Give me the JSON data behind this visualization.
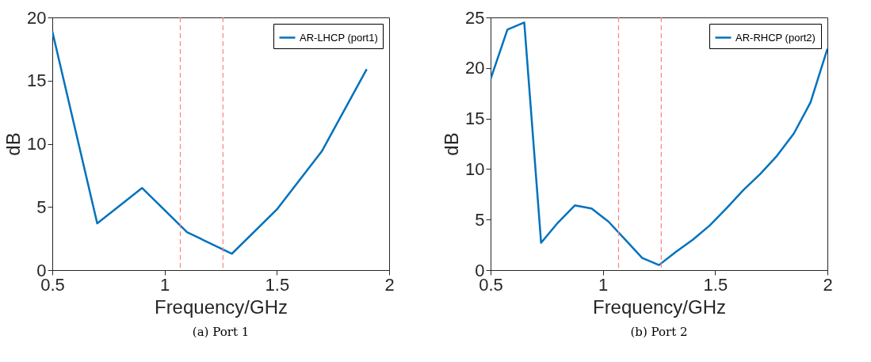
{
  "chart_data": [
    {
      "type": "line",
      "title": "(a) Port 1",
      "xlabel": "Frequency/GHz",
      "ylabel": "dB",
      "x": [
        0.5,
        0.7,
        0.9,
        1.1,
        1.3,
        1.5,
        1.7,
        1.9
      ],
      "series": [
        {
          "name": "AR-LHCP (port1)",
          "color": "#0072bd",
          "values": [
            18.9,
            3.7,
            6.5,
            3.0,
            1.3,
            4.8,
            9.4,
            15.9
          ]
        }
      ],
      "xlim": [
        0.5,
        2
      ],
      "xticks": [
        0.5,
        1,
        1.5,
        2
      ],
      "ylim": [
        0,
        20
      ],
      "yticks": [
        0,
        5,
        10,
        15,
        20
      ],
      "ref_lines": [
        {
          "axis": "x",
          "value": 1.07,
          "color": "#ff8080",
          "line_style": "dashed"
        },
        {
          "axis": "x",
          "value": 1.26,
          "color": "#ff8080",
          "line_style": "dashed"
        }
      ],
      "legend": "top right",
      "grid": false
    },
    {
      "type": "line",
      "title": "(b) Port 2",
      "xlabel": "Frequency/GHz",
      "ylabel": "dB",
      "x": [
        0.5,
        0.575,
        0.65,
        0.725,
        0.8,
        0.875,
        0.95,
        1.025,
        1.1,
        1.175,
        1.25,
        1.325,
        1.4,
        1.475,
        1.55,
        1.625,
        1.7,
        1.775,
        1.85,
        1.925,
        2.0
      ],
      "series": [
        {
          "name": "AR-RHCP (port2)",
          "color": "#0072bd",
          "values": [
            18.9,
            23.8,
            24.5,
            2.7,
            4.7,
            6.4,
            6.1,
            4.8,
            3.0,
            1.2,
            0.5,
            1.8,
            3.0,
            4.4,
            6.1,
            7.9,
            9.5,
            11.3,
            13.5,
            16.6,
            21.9
          ]
        }
      ],
      "xlim": [
        0.5,
        2
      ],
      "xticks": [
        0.5,
        1,
        1.5,
        2
      ],
      "ylim": [
        0,
        25
      ],
      "yticks": [
        0,
        5,
        10,
        15,
        20,
        25
      ],
      "ref_lines": [
        {
          "axis": "x",
          "value": 1.07,
          "color": "#ff8080",
          "line_style": "dashed"
        },
        {
          "axis": "x",
          "value": 1.26,
          "color": "#ff8080",
          "line_style": "dashed"
        }
      ],
      "legend": "top right",
      "grid": false
    }
  ]
}
